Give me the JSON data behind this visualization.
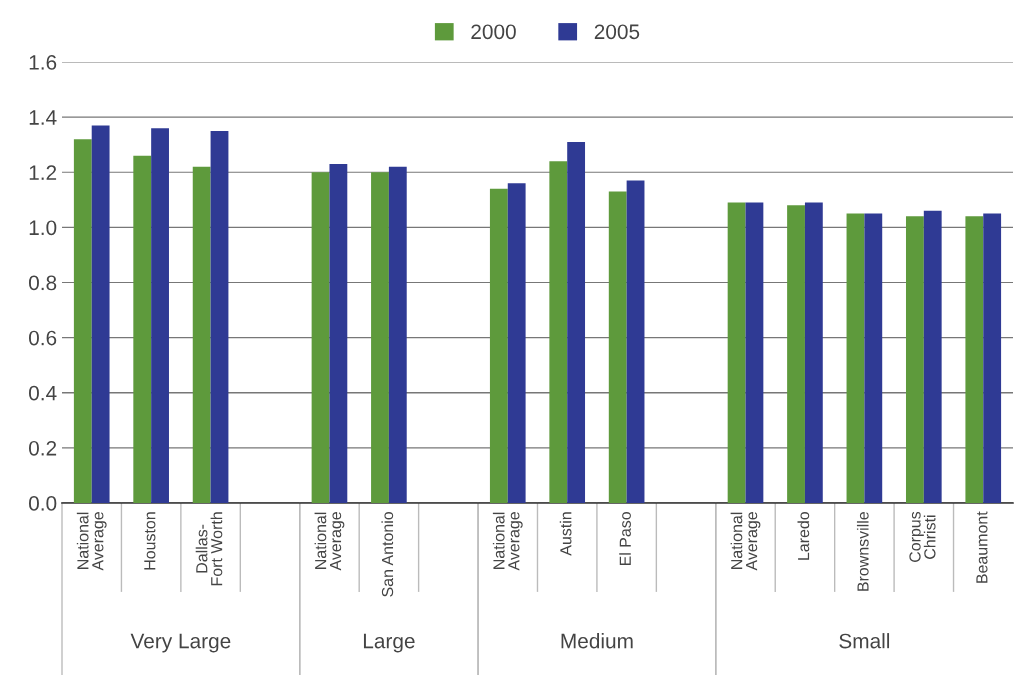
{
  "chart_data": {
    "type": "bar",
    "categories": [
      "National\nAverage",
      "Houston",
      "Dallas-\nFort Worth",
      null,
      "National\nAverage",
      "San Antonio",
      null,
      "National\nAverage",
      "Austin",
      "El Paso",
      null,
      "National\nAverage",
      "Laredo",
      "Brownsville",
      "Corpus\nChristi",
      "Beaumont"
    ],
    "series": [
      {
        "name": "2000",
        "color": "#5e9a3c",
        "values": [
          1.32,
          1.26,
          1.22,
          null,
          1.2,
          1.2,
          null,
          1.14,
          1.24,
          1.13,
          null,
          1.09,
          1.08,
          1.05,
          1.04,
          1.04
        ]
      },
      {
        "name": "2005",
        "color": "#2f3a94",
        "values": [
          1.37,
          1.36,
          1.35,
          null,
          1.23,
          1.22,
          null,
          1.16,
          1.31,
          1.17,
          null,
          1.09,
          1.09,
          1.05,
          1.06,
          1.05
        ]
      }
    ],
    "annotations": [
      "Very Large",
      "Large",
      "Medium",
      "Small"
    ],
    "ylim": [
      0,
      1.6
    ],
    "yticks": [
      {
        "value": 0,
        "label": "0.0"
      },
      {
        "value": 0.2,
        "label": "0.2"
      },
      {
        "value": 0.4,
        "label": "0.4"
      },
      {
        "value": 0.6,
        "label": "0.6"
      },
      {
        "value": 0.8,
        "label": "0.8"
      },
      {
        "value": 1.0,
        "label": "1.0"
      },
      {
        "value": 1.2,
        "label": "1.2"
      },
      {
        "value": 1.4,
        "label": "1.4"
      },
      {
        "value": 1.6,
        "label": "1.6"
      }
    ],
    "grid": "y",
    "legend": "top"
  }
}
